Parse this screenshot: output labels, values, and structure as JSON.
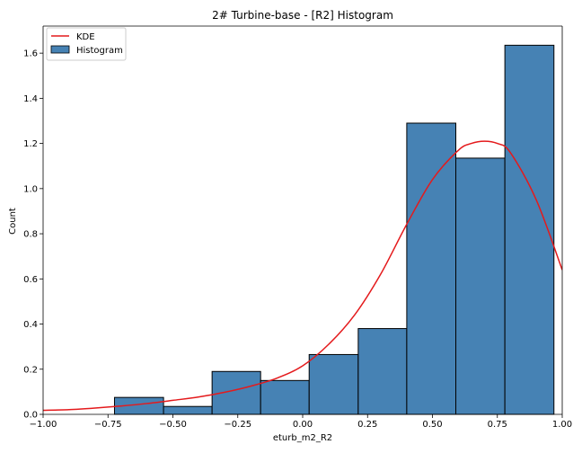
{
  "chart_data": {
    "type": "bar",
    "title": "2# Turbine-base - [R2] Histogram",
    "xlabel": "eturb_m2_R2",
    "ylabel": "Count",
    "xlim": [
      -1.0,
      1.0
    ],
    "ylim": [
      0.0,
      1.72
    ],
    "xticks": [
      -1.0,
      -0.75,
      -0.5,
      -0.25,
      0.0,
      0.25,
      0.5,
      0.75,
      1.0
    ],
    "xtick_labels": [
      "−1.00",
      "−0.75",
      "−0.50",
      "−0.25",
      "0.00",
      "0.25",
      "0.50",
      "0.75",
      "1.00"
    ],
    "yticks": [
      0.0,
      0.2,
      0.4,
      0.6,
      0.8,
      1.0,
      1.2,
      1.4,
      1.6
    ],
    "ytick_labels": [
      "0.0",
      "0.2",
      "0.4",
      "0.6",
      "0.8",
      "1.0",
      "1.2",
      "1.4",
      "1.6"
    ],
    "grid": false,
    "legend_position": "top-left",
    "bins": [
      {
        "x0": -0.725,
        "x1": -0.536,
        "value": 0.075
      },
      {
        "x0": -0.536,
        "x1": -0.349,
        "value": 0.035
      },
      {
        "x0": -0.349,
        "x1": -0.162,
        "value": 0.19
      },
      {
        "x0": -0.162,
        "x1": 0.025,
        "value": 0.15
      },
      {
        "x0": 0.025,
        "x1": 0.214,
        "value": 0.265
      },
      {
        "x0": 0.214,
        "x1": 0.401,
        "value": 0.38
      },
      {
        "x0": 0.401,
        "x1": 0.59,
        "value": 1.29
      },
      {
        "x0": 0.59,
        "x1": 0.779,
        "value": 1.135
      },
      {
        "x0": 0.779,
        "x1": 0.968,
        "value": 1.635
      }
    ],
    "kde": {
      "x": [
        -1.0,
        -0.9,
        -0.8,
        -0.7,
        -0.6,
        -0.5,
        -0.4,
        -0.3,
        -0.2,
        -0.1,
        0.0,
        0.1,
        0.2,
        0.3,
        0.4,
        0.5,
        0.6,
        0.65,
        0.7,
        0.75,
        0.8,
        0.9,
        1.0
      ],
      "y": [
        0.018,
        0.021,
        0.028,
        0.037,
        0.048,
        0.062,
        0.077,
        0.098,
        0.125,
        0.16,
        0.215,
        0.31,
        0.44,
        0.62,
        0.84,
        1.04,
        1.17,
        1.2,
        1.21,
        1.2,
        1.16,
        0.95,
        0.64
      ]
    },
    "legend": [
      {
        "label": "KDE",
        "kind": "line",
        "color": "#e41a1c"
      },
      {
        "label": "Histogram",
        "kind": "patch",
        "color": "#4682b4"
      }
    ],
    "colors": {
      "bar_fill": "#4682b4",
      "bar_edge": "#000000",
      "kde_line": "#e41a1c"
    }
  }
}
